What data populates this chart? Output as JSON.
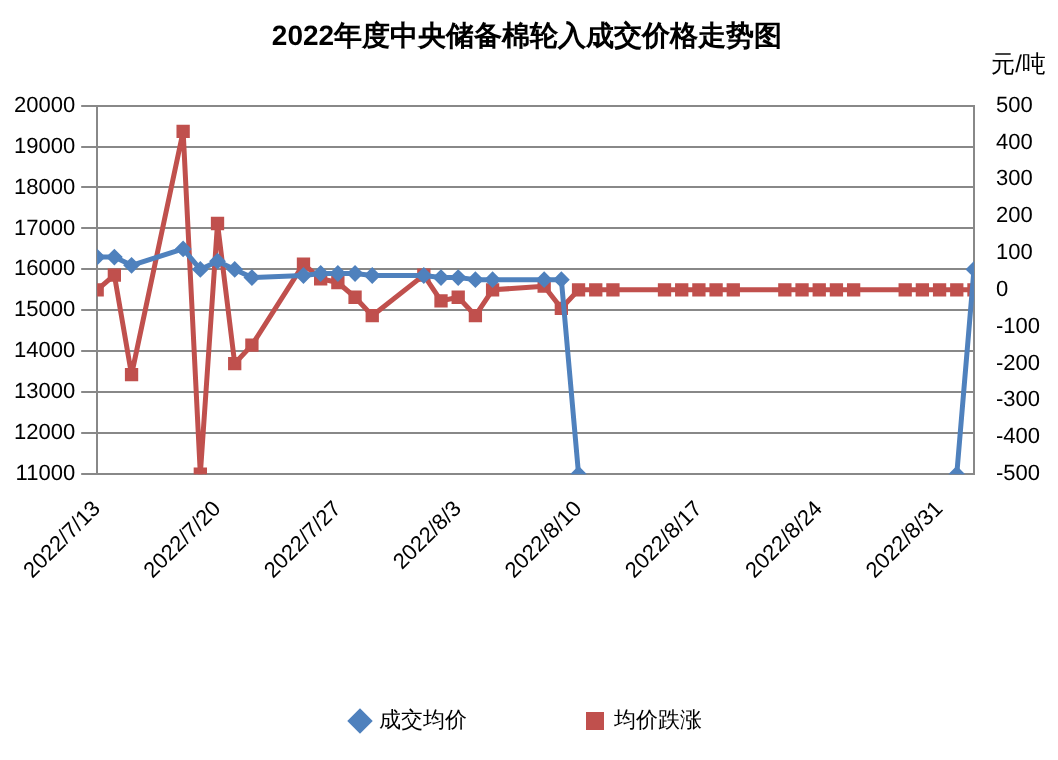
{
  "chart_data": {
    "type": "line",
    "title": "2022年度中央储备棉轮入成交价格走势图",
    "y2label": "元/吨",
    "x": [
      "2022-07-13",
      "2022-07-14",
      "2022-07-15",
      "2022-07-18",
      "2022-07-19",
      "2022-07-20",
      "2022-07-21",
      "2022-07-22",
      "2022-07-25",
      "2022-07-26",
      "2022-07-27",
      "2022-07-28",
      "2022-07-29",
      "2022-08-01",
      "2022-08-02",
      "2022-08-03",
      "2022-08-04",
      "2022-08-05",
      "2022-08-08",
      "2022-08-09",
      "2022-08-10",
      "2022-08-11",
      "2022-08-12",
      "2022-08-15",
      "2022-08-16",
      "2022-08-17",
      "2022-08-18",
      "2022-08-19",
      "2022-08-22",
      "2022-08-23",
      "2022-08-24",
      "2022-08-25",
      "2022-08-26",
      "2022-08-29",
      "2022-08-30",
      "2022-08-31",
      "2022-09-01",
      "2022-09-02"
    ],
    "series": [
      {
        "name": "成交均价",
        "color": "#4f81bd",
        "marker": "diamond",
        "values": [
          16300,
          16300,
          16100,
          16500,
          16000,
          16200,
          16000,
          15800,
          15850,
          15900,
          15900,
          15900,
          15850,
          15850,
          15800,
          15800,
          15750,
          15750,
          15750,
          15750,
          11000,
          null,
          null,
          null,
          null,
          null,
          null,
          null,
          null,
          null,
          null,
          null,
          null,
          null,
          null,
          null,
          11000,
          16000
        ]
      },
      {
        "name": "均价跌涨",
        "color": "#c0504d",
        "marker": "square",
        "axis": "y2",
        "values": [
          0,
          40,
          -230,
          430,
          -500,
          180,
          -200,
          -150,
          70,
          30,
          20,
          -20,
          -70,
          40,
          -30,
          -20,
          -70,
          0,
          10,
          -50,
          0,
          0,
          0,
          0,
          0,
          0,
          0,
          0,
          0,
          0,
          0,
          0,
          0,
          0,
          0,
          0,
          0,
          0
        ]
      }
    ],
    "xlim": [
      "2022-07-13",
      "2022-09-02"
    ],
    "xticks": [
      {
        "value": "2022-07-13",
        "label": "2022/7/13"
      },
      {
        "value": "2022-07-20",
        "label": "2022/7/20"
      },
      {
        "value": "2022-07-27",
        "label": "2022/7/27"
      },
      {
        "value": "2022-08-03",
        "label": "2022/8/3"
      },
      {
        "value": "2022-08-10",
        "label": "2022/8/10"
      },
      {
        "value": "2022-08-17",
        "label": "2022/8/17"
      },
      {
        "value": "2022-08-24",
        "label": "2022/8/24"
      },
      {
        "value": "2022-08-31",
        "label": "2022/8/31"
      }
    ],
    "ylim": [
      11000,
      20000
    ],
    "yticks": [
      11000,
      12000,
      13000,
      14000,
      15000,
      16000,
      17000,
      18000,
      19000,
      20000
    ],
    "y2lim": [
      -500,
      500
    ],
    "y2ticks": [
      -500,
      -400,
      -300,
      -200,
      -100,
      0,
      100,
      200,
      300,
      400,
      500
    ],
    "grid": "y",
    "legend": "bottom",
    "line_style": "solid"
  }
}
